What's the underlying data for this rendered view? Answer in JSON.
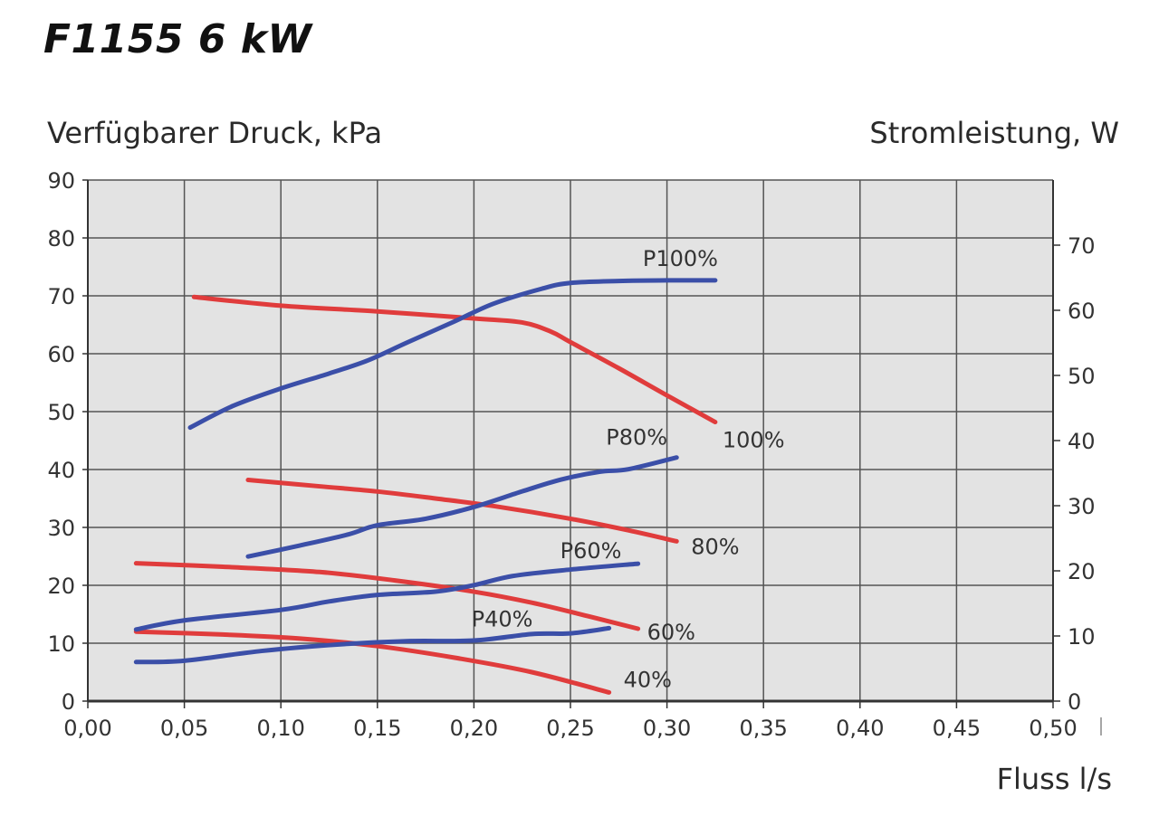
{
  "chart_data": {
    "type": "line",
    "title": "F1155 6 kW",
    "ylabel": "Verfügbarer Druck, kPa",
    "y2label": "Stromleistung, W",
    "xlabel": "Fluss l/s",
    "xlim": [
      0,
      0.5
    ],
    "ylim": [
      0,
      90
    ],
    "y2lim": [
      0,
      80
    ],
    "x_ticks": [
      "0,00",
      "0,05",
      "0,10",
      "0,15",
      "0,20",
      "0,25",
      "0,30",
      "0,35",
      "0,40",
      "0,45",
      "0,50"
    ],
    "y_ticks": [
      "0",
      "10",
      "20",
      "30",
      "40",
      "50",
      "60",
      "70",
      "80",
      "90"
    ],
    "y2_ticks": [
      "0",
      "10",
      "20",
      "30",
      "40",
      "50",
      "60",
      "70"
    ],
    "grid": true,
    "colors": {
      "pressure": "#e03c3c",
      "power": "#3b4fa8",
      "grid": "#555555",
      "plot_bg": "#e3e3e3"
    },
    "series": [
      {
        "name": "100%",
        "group": "pressure",
        "axis": "left",
        "x": [
          0.055,
          0.1,
          0.15,
          0.2,
          0.225,
          0.24,
          0.25,
          0.275,
          0.3,
          0.325
        ],
        "y": [
          69.8,
          68.3,
          67.3,
          66.1,
          65.4,
          63.8,
          62,
          57.5,
          52.8,
          48.2
        ]
      },
      {
        "name": "80%",
        "group": "pressure",
        "axis": "left",
        "x": [
          0.083,
          0.12,
          0.15,
          0.18,
          0.21,
          0.25,
          0.28,
          0.305
        ],
        "y": [
          38.2,
          37.1,
          36.2,
          35,
          33.7,
          31.5,
          29.5,
          27.6
        ]
      },
      {
        "name": "60%",
        "group": "pressure",
        "axis": "left",
        "x": [
          0.025,
          0.07,
          0.12,
          0.16,
          0.2,
          0.23,
          0.26,
          0.285
        ],
        "y": [
          23.8,
          23.2,
          22.3,
          20.8,
          18.9,
          17,
          14.6,
          12.5
        ]
      },
      {
        "name": "40%",
        "group": "pressure",
        "axis": "left",
        "x": [
          0.025,
          0.07,
          0.11,
          0.15,
          0.19,
          0.23,
          0.27
        ],
        "y": [
          12,
          11.5,
          10.8,
          9.5,
          7.5,
          5,
          1.5
        ]
      },
      {
        "name": "P100%",
        "group": "power",
        "axis": "right",
        "x": [
          0.053,
          0.075,
          0.1,
          0.125,
          0.145,
          0.165,
          0.19,
          0.21,
          0.235,
          0.25,
          0.275,
          0.3,
          0.325
        ],
        "y": [
          42,
          45.3,
          48,
          50.3,
          52.3,
          55,
          58.3,
          61,
          63.3,
          64.2,
          64.5,
          64.6,
          64.6
        ]
      },
      {
        "name": "P80%",
        "group": "power",
        "axis": "right",
        "x": [
          0.083,
          0.11,
          0.135,
          0.15,
          0.175,
          0.2,
          0.225,
          0.245,
          0.265,
          0.28,
          0.305
        ],
        "y": [
          22.2,
          23.9,
          25.6,
          27,
          28,
          29.8,
          32.2,
          34,
          35.2,
          35.6,
          37.4
        ]
      },
      {
        "name": "P60%",
        "group": "power",
        "axis": "right",
        "x": [
          0.025,
          0.05,
          0.1,
          0.125,
          0.15,
          0.18,
          0.2,
          0.22,
          0.25,
          0.285
        ],
        "y": [
          11,
          12.4,
          14,
          15.3,
          16.3,
          16.8,
          17.8,
          19.2,
          20.2,
          21.1
        ]
      },
      {
        "name": "P40%",
        "group": "power",
        "axis": "right",
        "x": [
          0.025,
          0.05,
          0.09,
          0.13,
          0.165,
          0.2,
          0.23,
          0.25,
          0.27
        ],
        "y": [
          6,
          6.2,
          7.7,
          8.7,
          9.2,
          9.3,
          10.3,
          10.4,
          11.2
        ]
      }
    ],
    "labels": [
      {
        "text": "100%",
        "for": "100%"
      },
      {
        "text": "80%",
        "for": "80%"
      },
      {
        "text": "60%",
        "for": "60%"
      },
      {
        "text": "40%",
        "for": "40%"
      },
      {
        "text": "P100%",
        "for": "P100%"
      },
      {
        "text": "P80%",
        "for": "P80%"
      },
      {
        "text": "P60%",
        "for": "P60%"
      },
      {
        "text": "P40%",
        "for": "P40%"
      }
    ]
  }
}
